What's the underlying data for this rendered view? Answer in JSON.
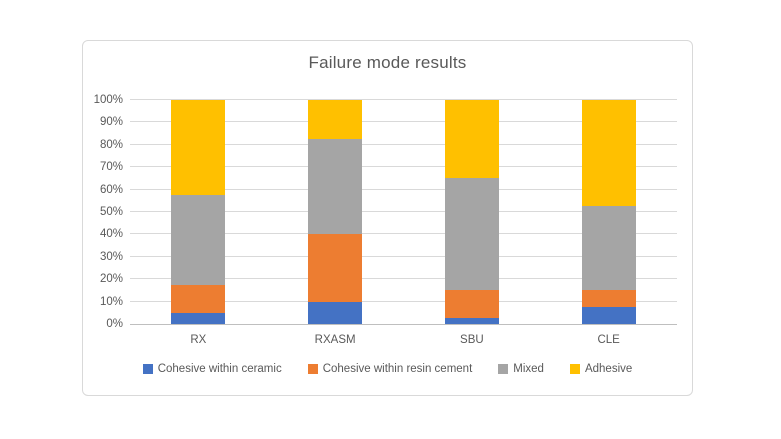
{
  "page": {
    "background": "#ffffff"
  },
  "chart": {
    "frame_border_color": "#d9d9d9",
    "frame_background": "#ffffff",
    "title_color": "#595959",
    "text_color": "#595959",
    "grid_color": "#d9d9d9",
    "axis_color": "#bfbfbf"
  },
  "chart_data": {
    "type": "bar",
    "stacked": true,
    "title": "Failure mode results",
    "categories": [
      "RX",
      "RXASM",
      "SBU",
      "CLE"
    ],
    "series": [
      {
        "name": "Cohesive within ceramic",
        "color": "#4472c4",
        "values": [
          5,
          10,
          2.5,
          7.5
        ]
      },
      {
        "name": "Cohesive within resin cement",
        "color": "#ed7d31",
        "values": [
          12.5,
          30,
          12.5,
          7.5
        ]
      },
      {
        "name": "Mixed",
        "color": "#a5a5a5",
        "values": [
          40,
          42.5,
          50,
          37.5
        ]
      },
      {
        "name": "Adhesive",
        "color": "#ffc000",
        "values": [
          42.5,
          17.5,
          35,
          47.5
        ]
      }
    ],
    "stack_totals": [
      100,
      100,
      100,
      100
    ],
    "xlabel": "",
    "ylabel": "",
    "ylim": [
      0,
      100
    ],
    "ytick_step": 10,
    "ytick_labels": [
      "0%",
      "10%",
      "20%",
      "30%",
      "40%",
      "50%",
      "60%",
      "70%",
      "80%",
      "90%",
      "100%"
    ],
    "grid": true,
    "legend_position": "bottom"
  }
}
